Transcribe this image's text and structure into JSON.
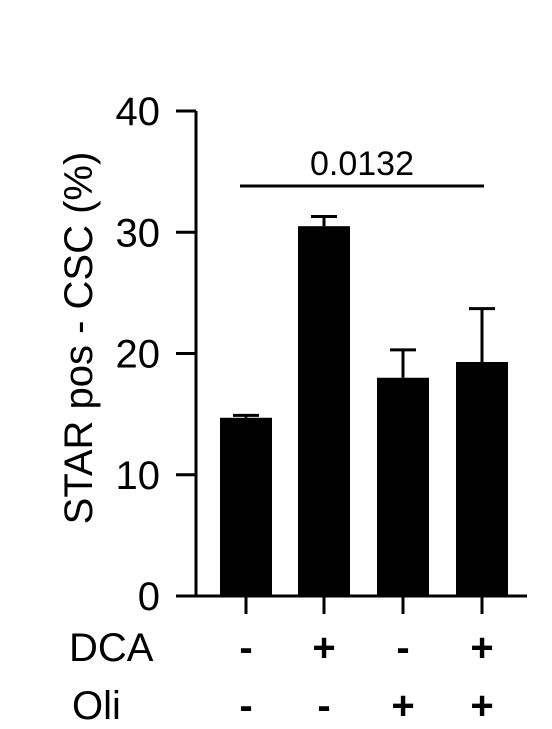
{
  "chart_data": {
    "type": "bar",
    "ylabel": "STAR pos - CSC (%)",
    "ylim": [
      0,
      40
    ],
    "yticks": [
      "0",
      "10",
      "20",
      "30",
      "40"
    ],
    "bars": [
      {
        "value": 14.7,
        "error": 0.2,
        "color": "#000000"
      },
      {
        "value": 30.5,
        "error": 0.8,
        "color": "#000000"
      },
      {
        "value": 18.0,
        "error": 2.3,
        "color": "#000000"
      },
      {
        "value": 19.3,
        "error": 4.4,
        "color": "#000000"
      }
    ],
    "conditions": [
      {
        "label": "DCA",
        "signs": [
          "-",
          "+",
          "-",
          "+"
        ]
      },
      {
        "label": "Oli",
        "signs": [
          "-",
          "-",
          "+",
          "+"
        ]
      }
    ],
    "annotation": {
      "text": "0.0132",
      "from_bar": 2,
      "to_bar": 4
    }
  }
}
